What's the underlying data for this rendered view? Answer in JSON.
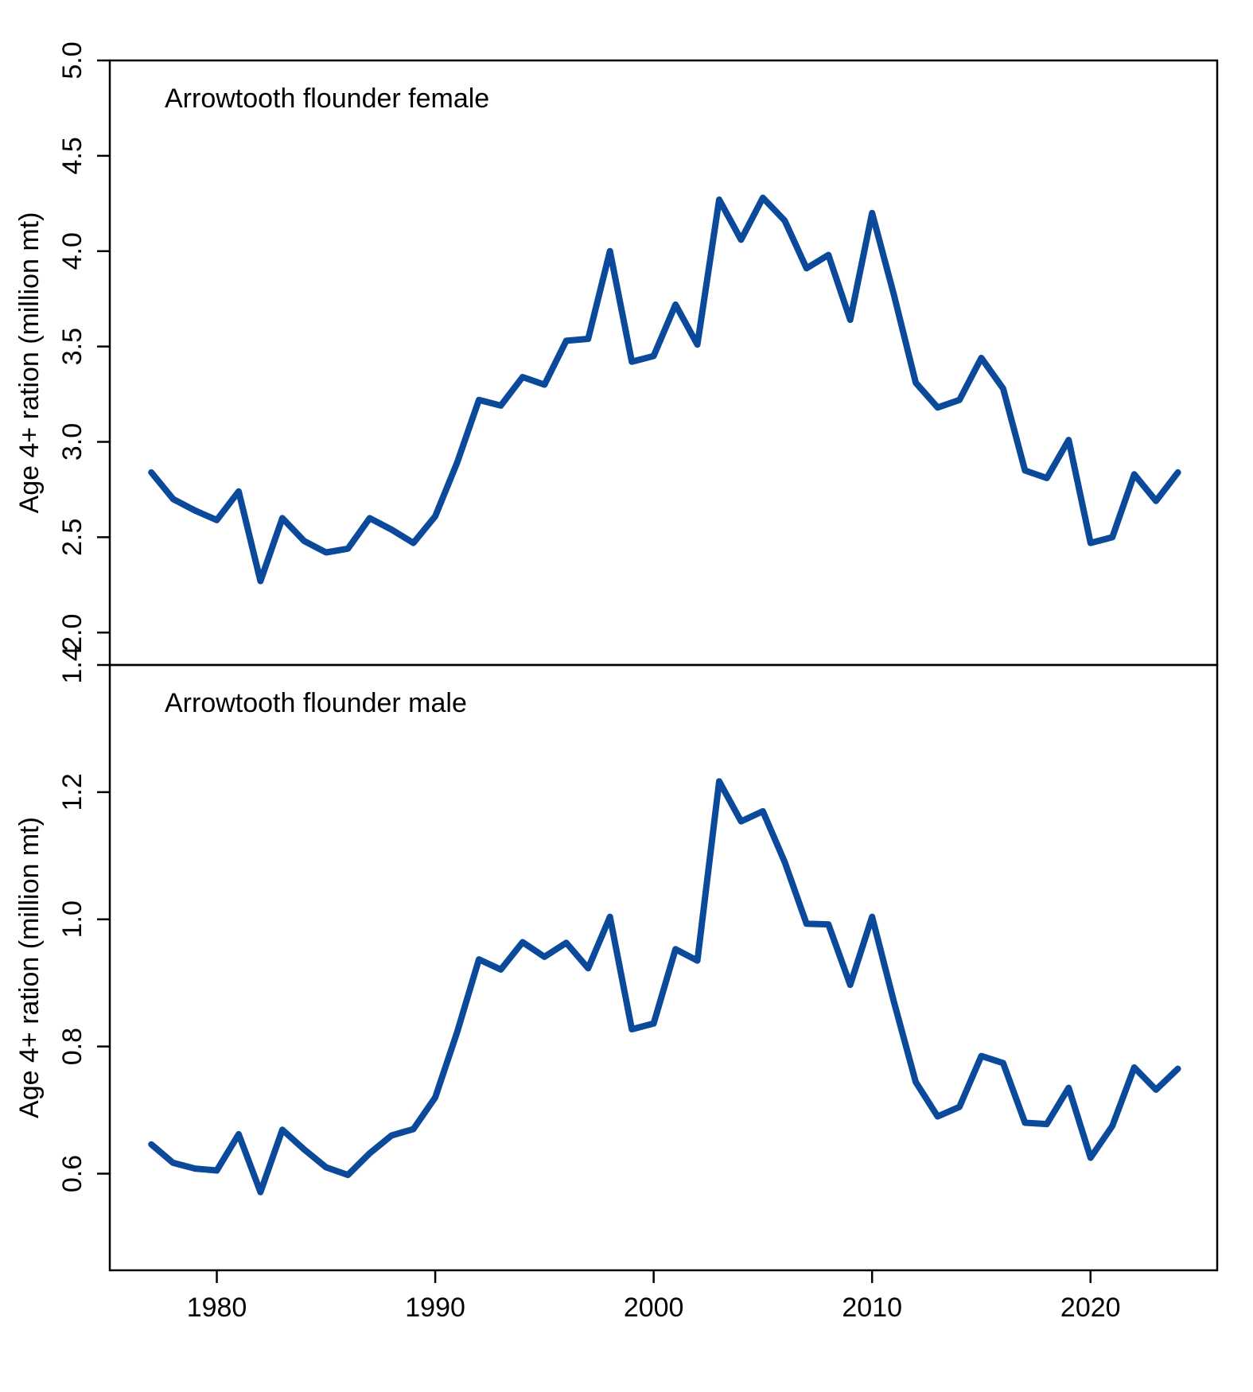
{
  "chart_data": [
    {
      "type": "line",
      "title": "Arrowtooth flounder female",
      "xlabel": "",
      "ylabel": "Age 4+ ration (million  mt)",
      "ylim": [
        1.83,
        5.0
      ],
      "yticks": [
        "2.0",
        "2.5",
        "3.0",
        "3.5",
        "4.0",
        "4.5",
        "5.0"
      ],
      "line_color": "#0b4a9a",
      "x": [
        1977,
        1978,
        1979,
        1980,
        1981,
        1982,
        1983,
        1984,
        1985,
        1986,
        1987,
        1988,
        1989,
        1990,
        1991,
        1992,
        1993,
        1994,
        1995,
        1996,
        1997,
        1998,
        1999,
        2000,
        2001,
        2002,
        2003,
        2004,
        2005,
        2006,
        2007,
        2008,
        2009,
        2010,
        2011,
        2012,
        2013,
        2014,
        2015,
        2016,
        2017,
        2018,
        2019,
        2020,
        2021,
        2022,
        2023,
        2024
      ],
      "values": [
        2.84,
        2.7,
        2.64,
        2.59,
        2.74,
        2.27,
        2.6,
        2.48,
        2.42,
        2.44,
        2.6,
        2.54,
        2.47,
        2.61,
        2.89,
        3.22,
        3.19,
        3.34,
        3.3,
        3.53,
        3.54,
        4.0,
        3.42,
        3.45,
        3.72,
        3.51,
        4.27,
        4.06,
        4.28,
        4.16,
        3.91,
        3.98,
        3.64,
        4.2,
        3.77,
        3.31,
        3.18,
        3.22,
        3.44,
        3.28,
        2.85,
        2.81,
        3.01,
        2.47,
        2.5,
        2.83,
        2.69,
        2.84
      ]
    },
    {
      "type": "line",
      "title": "Arrowtooth flounder male",
      "xlabel": "",
      "ylabel": "Age 4+ ration (million  mt)",
      "ylim": [
        0.448,
        1.4
      ],
      "yticks": [
        "0.6",
        "0.8",
        "1.0",
        "1.2",
        "1.4"
      ],
      "xticks": [
        "1980",
        "1990",
        "2000",
        "2010",
        "2020"
      ],
      "line_color": "#0b4a9a",
      "x": [
        1977,
        1978,
        1979,
        1980,
        1981,
        1982,
        1983,
        1984,
        1985,
        1986,
        1987,
        1988,
        1989,
        1990,
        1991,
        1992,
        1993,
        1994,
        1995,
        1996,
        1997,
        1998,
        1999,
        2000,
        2001,
        2002,
        2003,
        2004,
        2005,
        2006,
        2007,
        2008,
        2009,
        2010,
        2011,
        2012,
        2013,
        2014,
        2015,
        2016,
        2017,
        2018,
        2019,
        2020,
        2021,
        2022,
        2023,
        2024
      ],
      "values": [
        0.646,
        0.617,
        0.608,
        0.605,
        0.662,
        0.571,
        0.669,
        0.638,
        0.61,
        0.598,
        0.632,
        0.66,
        0.67,
        0.72,
        0.822,
        0.937,
        0.921,
        0.964,
        0.941,
        0.963,
        0.923,
        1.004,
        0.827,
        0.836,
        0.953,
        0.935,
        1.217,
        1.154,
        1.17,
        1.09,
        0.993,
        0.992,
        0.897,
        1.004,
        0.87,
        0.744,
        0.69,
        0.705,
        0.785,
        0.774,
        0.68,
        0.678,
        0.735,
        0.625,
        0.675,
        0.767,
        0.732,
        0.765
      ]
    }
  ]
}
